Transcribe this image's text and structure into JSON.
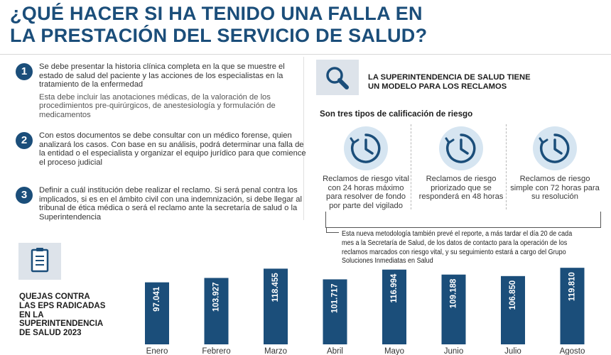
{
  "title": {
    "line1": "¿QUÉ HACER SI HA TENIDO   UNA FALLA EN",
    "line2": "LA PRESTACIÓN DEL SERVICIO   DE SALUD?"
  },
  "steps": [
    {
      "number": "1",
      "text": "Se debe presentar la historia clínica completa en la que se muestre el estado de salud del paciente y las acciones de los especialistas en la tratamiento de la enfermedad",
      "sub": "Esta debe incluir las anotaciones médicas, de la valoración de los procedimientos pre-quirúrgicos, de anestesiología y formulación de medicamentos"
    },
    {
      "number": "2",
      "text": "Con estos documentos se debe consultar con un médico forense, quien analizará los casos. Con base en su análisis, podrá determinar una falla de la entidad o el especialista y organizar el equipo jurídico para que comience el proceso judicial"
    },
    {
      "number": "3",
      "text": "Definir a cuál institución debe realizar el reclamo. Si será penal contra los implicados, si es en el ámbito civil con una indemnización, si debe llegar al tribunal de ética médica o será el reclamo ante la secretaría de salud o la Superintendencia"
    }
  ],
  "right": {
    "icon": "magnifier-icon",
    "heading_line1": "LA SUPERINTENDENCIA DE SALUD TIENE",
    "heading_line2": "UN MODELO PARA LOS RECLAMOS",
    "subheading": "Son tres tipos de calificación de riesgo",
    "clock_icon": "clock-icon",
    "types": [
      "Reclamos de riesgo vital con 24 horas máximo para resolver de fondo por parte del vigilado",
      "Reclamos de riesgo priorizado que se responderá en 48 horas",
      "Reclamos de riesgo simple con 72 horas para su resolución"
    ],
    "note": "Esta nueva metodología también prevé el reporte, a más tardar el día 20 de cada mes a la Secretaría de Salud, de los datos de contacto para la operación de los reclamos marcados con riesgo vital, y su seguimiento estará a cargo del Grupo Soluciones Inmediatas en Salud"
  },
  "chart_section": {
    "icon": "clipboard-icon",
    "title_lines": [
      "QUEJAS CONTRA",
      "LAS EPS RADICADAS",
      "EN LA",
      "SUPERINTENDENCIA",
      "DE SALUD 2023"
    ]
  },
  "colors": {
    "brand": "#1b4e7a",
    "bar": "#1b4e7a",
    "icon_bg": "#d6e5f1",
    "panel_bg": "#dde3ea"
  },
  "chart_data": {
    "type": "bar",
    "categories": [
      "Enero",
      "Febrero",
      "Marzo",
      "Abril",
      "Mayo",
      "Junio",
      "Julio",
      "Agosto"
    ],
    "values": [
      97041,
      103927,
      118455,
      101717,
      116994,
      109188,
      106850,
      119810
    ],
    "value_labels": [
      "97.041",
      "103.927",
      "118.455",
      "101.717",
      "116.994",
      "109.188",
      "106.850",
      "119.810"
    ],
    "title": "",
    "xlabel": "",
    "ylabel": "",
    "grid": false,
    "legend": "none"
  }
}
